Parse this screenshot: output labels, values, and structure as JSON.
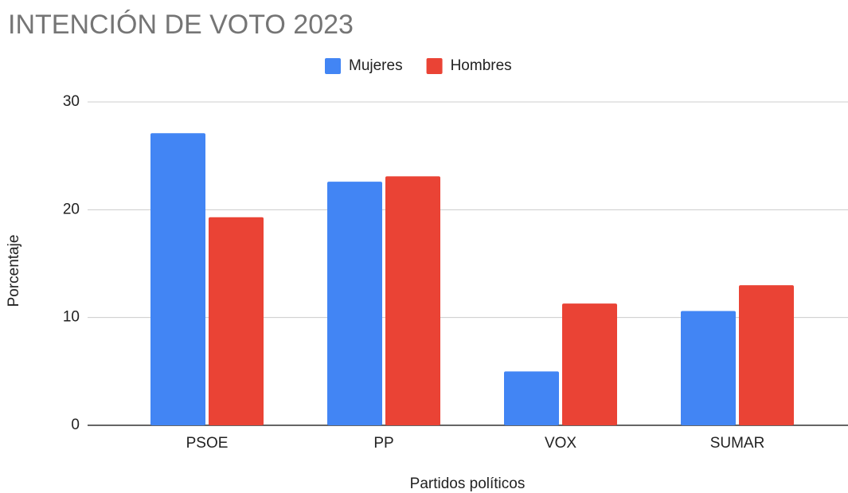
{
  "chart_data": {
    "type": "bar",
    "title": "INTENCIÓN DE VOTO 2023",
    "x_label": "Partidos políticos",
    "y_label": "Porcentaje",
    "categories": [
      "PSOE",
      "PP",
      "VOX",
      "SUMAR"
    ],
    "series": [
      {
        "name": "Mujeres",
        "color": "#4285f4",
        "values": [
          27.1,
          22.6,
          5.0,
          10.6
        ]
      },
      {
        "name": "Hombres",
        "color": "#ea4335",
        "values": [
          19.3,
          23.1,
          11.3,
          13.0
        ]
      }
    ],
    "ylim": [
      0,
      30
    ],
    "yticks": [
      0,
      10,
      20,
      30
    ],
    "grid": true,
    "legend": "top"
  }
}
